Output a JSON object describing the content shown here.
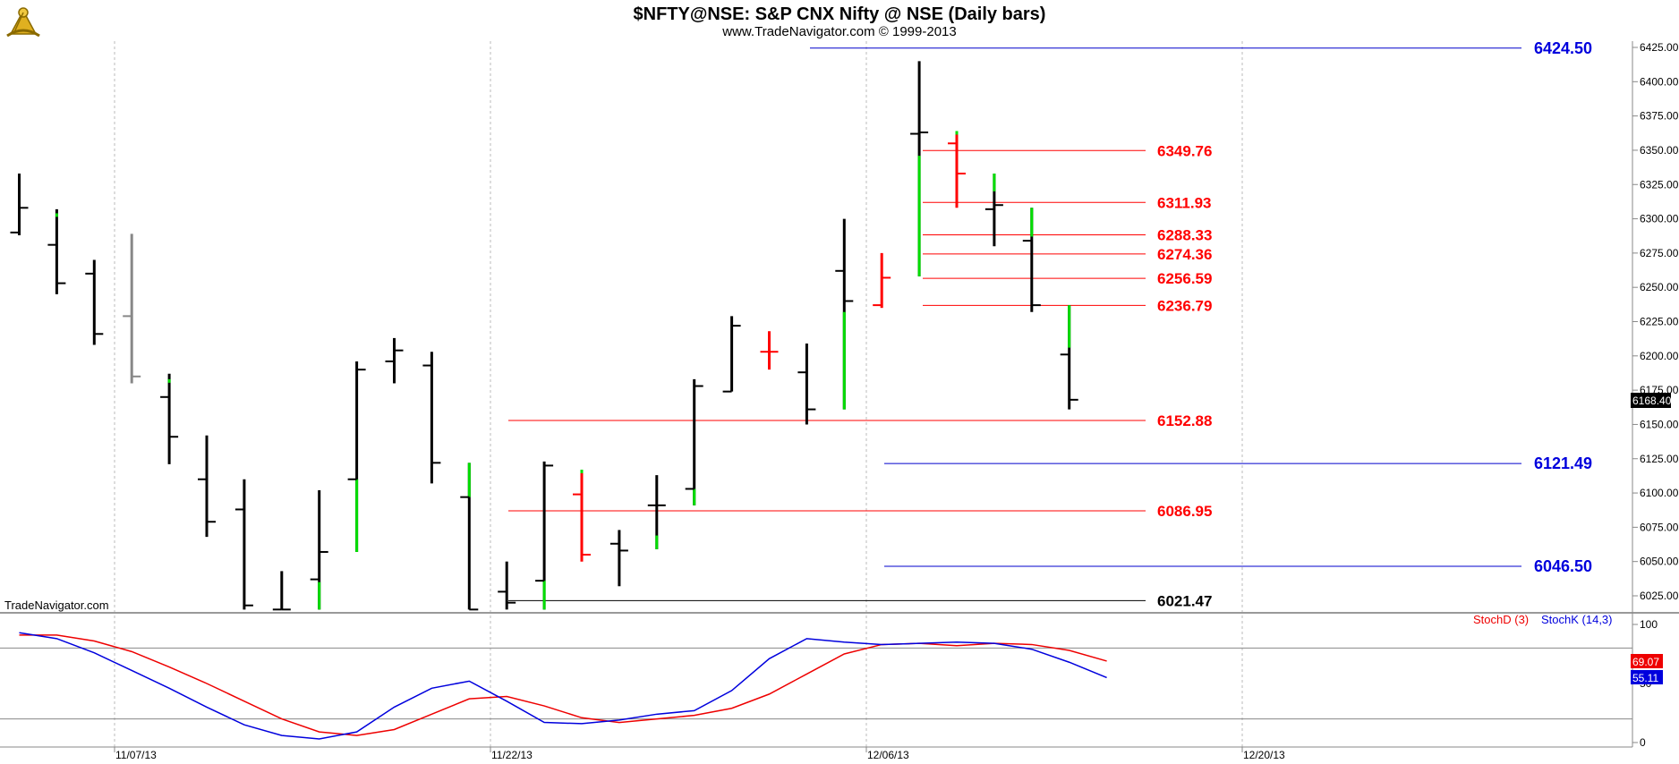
{
  "header": {
    "title": "$NFTY@NSE:  S&P CNX Nifty @ NSE  (Daily bars)",
    "subtitle": "www.TradeNavigator.com © 1999-2013",
    "logo_icon": "sextant-logo-icon"
  },
  "watermark": "TradeNavigator.com",
  "colors": {
    "up_bar": "#00dd00",
    "down_bar": "#000000",
    "red_bar": "#ff0000",
    "gray_bar": "#888888",
    "red_level": "#ff0000",
    "blue_level": "#0000cc",
    "black_level": "#000000",
    "stoch_d": "#ee0000",
    "stoch_k": "#0000dd"
  },
  "chart_data": {
    "type": "ohlc",
    "x_dates": [
      "11/07/13",
      "11/22/13",
      "12/06/13",
      "12/20/13"
    ],
    "y_ticks": [
      6025,
      6050,
      6075,
      6100,
      6125,
      6150,
      6175,
      6200,
      6225,
      6250,
      6275,
      6300,
      6325,
      6350,
      6375,
      6400,
      6425
    ],
    "y_tick_labels": [
      "6025.00",
      "6050.00",
      "6075.00",
      "6100.00",
      "6125.00",
      "6150.00",
      "6175.00",
      "6200.00",
      "6225.00",
      "6250.00",
      "6275.00",
      "6300.00",
      "6325.00",
      "6350.00",
      "6375.00",
      "6400.00",
      "6425.00"
    ],
    "ylim": [
      6015,
      6430
    ],
    "last_price": "6168.40",
    "bars": [
      {
        "o": 6290,
        "h": 6333,
        "l": 6288,
        "c": 6308,
        "color": "black"
      },
      {
        "o": 6281,
        "h": 6307,
        "l": 6245,
        "c": 6253,
        "color": "black",
        "up_tip": 6304
      },
      {
        "o": 6260,
        "h": 6270,
        "l": 6208,
        "c": 6216,
        "color": "black"
      },
      {
        "o": 6229,
        "h": 6289,
        "l": 6180,
        "c": 6185,
        "color": "gray"
      },
      {
        "o": 6170,
        "h": 6187,
        "l": 6121,
        "c": 6141,
        "color": "black",
        "up_tip": 6183
      },
      {
        "o": 6110,
        "h": 6142,
        "l": 6068,
        "c": 6079,
        "color": "black"
      },
      {
        "o": 6088,
        "h": 6110,
        "l": 6015,
        "c": 6018,
        "color": "black"
      },
      {
        "o": 6015,
        "h": 6043,
        "l": 6015,
        "c": 6015,
        "color": "black"
      },
      {
        "o": 6037,
        "h": 6102,
        "l": 6015,
        "c": 6057,
        "color": "black",
        "up_from": 6015,
        "up_to": 6035
      },
      {
        "o": 6110,
        "h": 6196,
        "l": 6057,
        "c": 6190,
        "color": "black",
        "up_from": 6057,
        "up_to": 6110
      },
      {
        "o": 6196,
        "h": 6213,
        "l": 6180,
        "c": 6204,
        "color": "black"
      },
      {
        "o": 6193,
        "h": 6203,
        "l": 6107,
        "c": 6122,
        "color": "black"
      },
      {
        "o": 6097,
        "h": 6122,
        "l": 6015,
        "c": 6015,
        "color": "black",
        "up_from": 6097,
        "up_to": 6122
      },
      {
        "o": 6028,
        "h": 6050,
        "l": 6015,
        "c": 6020,
        "color": "black"
      },
      {
        "o": 6036,
        "h": 6123,
        "l": 6015,
        "c": 6120,
        "color": "black",
        "up_from": 6015,
        "up_to": 6036
      },
      {
        "o": 6099,
        "h": 6117,
        "l": 6050,
        "c": 6055,
        "color": "red",
        "up_tip": 6117
      },
      {
        "o": 6063,
        "h": 6073,
        "l": 6032,
        "c": 6058,
        "color": "black"
      },
      {
        "o": 6091,
        "h": 6113,
        "l": 6059,
        "c": 6091,
        "color": "black",
        "up_from": 6059,
        "up_to": 6069
      },
      {
        "o": 6103,
        "h": 6183,
        "l": 6091,
        "c": 6178,
        "color": "black",
        "up_from": 6091,
        "up_to": 6103
      },
      {
        "o": 6174,
        "h": 6229,
        "l": 6174,
        "c": 6222,
        "color": "black"
      },
      {
        "o": 6203,
        "h": 6218,
        "l": 6190,
        "c": 6203,
        "color": "red"
      },
      {
        "o": 6188,
        "h": 6209,
        "l": 6150,
        "c": 6161,
        "color": "black"
      },
      {
        "o": 6262,
        "h": 6300,
        "l": 6161,
        "c": 6240,
        "color": "black",
        "up_from": 6161,
        "up_to": 6232
      },
      {
        "o": 6237,
        "h": 6275,
        "l": 6235,
        "c": 6257,
        "color": "red"
      },
      {
        "o": 6362,
        "h": 6415,
        "l": 6258,
        "c": 6363,
        "color": "black",
        "up_from": 6258,
        "up_to": 6346
      },
      {
        "o": 6355,
        "h": 6364,
        "l": 6308,
        "c": 6333,
        "color": "red",
        "up_tip": 6364
      },
      {
        "o": 6307,
        "h": 6333,
        "l": 6280,
        "c": 6310,
        "color": "black",
        "up_from": 6320,
        "up_to": 6333
      },
      {
        "o": 6284,
        "h": 6308,
        "l": 6232,
        "c": 6237,
        "color": "black",
        "up_from": 6287,
        "up_to": 6308
      },
      {
        "o": 6201,
        "h": 6237,
        "l": 6161,
        "c": 6168,
        "color": "black",
        "up_from": 6206,
        "up_to": 6237
      }
    ],
    "levels": [
      {
        "value": "6424.50",
        "color": "blue"
      },
      {
        "value": "6349.76",
        "color": "red"
      },
      {
        "value": "6311.93",
        "color": "red"
      },
      {
        "value": "6288.33",
        "color": "red"
      },
      {
        "value": "6274.36",
        "color": "red"
      },
      {
        "value": "6256.59",
        "color": "red"
      },
      {
        "value": "6236.79",
        "color": "red"
      },
      {
        "value": "6152.88",
        "color": "red"
      },
      {
        "value": "6121.49",
        "color": "blue"
      },
      {
        "value": "6086.95",
        "color": "red"
      },
      {
        "value": "6046.50",
        "color": "blue"
      },
      {
        "value": "6021.47",
        "color": "black"
      }
    ],
    "stochastic": {
      "legend_d": "StochD (3)",
      "legend_k": "StochK (14,3)",
      "y_ticks": [
        "100",
        "50",
        "0"
      ],
      "ylim": [
        0,
        100
      ],
      "upper_band": 80,
      "lower_band": 20,
      "d_last": "69.07",
      "k_last": "55.11",
      "d_values": [
        91,
        91,
        86,
        77,
        64,
        50,
        35,
        20,
        9,
        6,
        11,
        24,
        37,
        39,
        31,
        21,
        17,
        20,
        23,
        29,
        41,
        58,
        75,
        83,
        84,
        82,
        84,
        83,
        78,
        69
      ],
      "k_values": [
        93,
        88,
        76,
        61,
        46,
        30,
        15,
        6,
        3,
        9,
        30,
        46,
        52,
        35,
        17,
        16,
        19,
        24,
        27,
        44,
        71,
        88,
        85,
        83,
        84,
        85,
        84,
        79,
        68,
        55
      ]
    }
  }
}
